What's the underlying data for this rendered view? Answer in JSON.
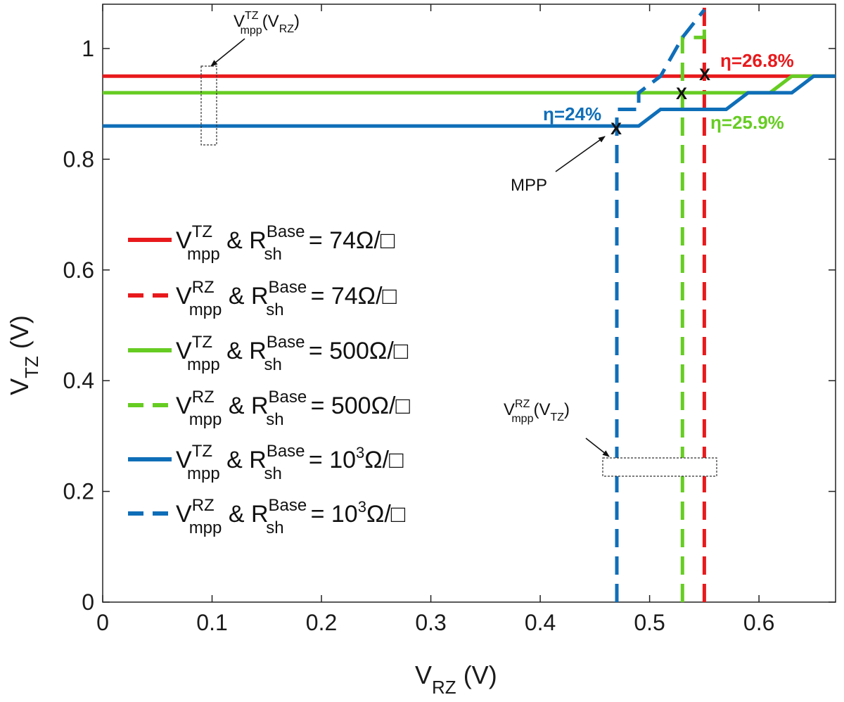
{
  "chart_data": {
    "type": "line",
    "title": "",
    "xlabel": {
      "main": "V",
      "sub": "RZ",
      "unit": " (V)"
    },
    "ylabel": {
      "main": "V",
      "sub": "TZ",
      "unit": " (V)"
    },
    "xlim": [
      0,
      0.67
    ],
    "ylim": [
      0,
      1.08
    ],
    "grid": false,
    "xticks": [
      0,
      0.1,
      0.2,
      0.3,
      0.4,
      0.5,
      0.6
    ],
    "xtick_labels": [
      "0",
      "0.1",
      "0.2",
      "0.3",
      "0.4",
      "0.5",
      "0.6"
    ],
    "yticks": [
      0,
      0.2,
      0.4,
      0.6,
      0.8,
      1
    ],
    "ytick_labels": [
      "0",
      "0.2",
      "0.4",
      "0.6",
      "0.8",
      "1"
    ],
    "legend_position": "center-left",
    "series": [
      {
        "id": "red-solid",
        "color": "#e8191c",
        "dashed": false,
        "label": {
          "a": "V",
          "asup": "TZ",
          "asub": "mpp",
          "b": " & R",
          "bsup": "Base",
          "bsub": "sh",
          "c": "=  74Ω/□"
        },
        "x": [
          0,
          0.63,
          0.67
        ],
        "y": [
          0.95,
          0.95,
          0.95
        ]
      },
      {
        "id": "red-dashed",
        "color": "#e8191c",
        "dashed": true,
        "label": {
          "a": "V",
          "asup": "RZ",
          "asub": "mpp",
          "b": " & R",
          "bsup": "Base",
          "bsub": "sh",
          "c": "=  74Ω/□"
        },
        "x": [
          0.55,
          0.55
        ],
        "y": [
          0,
          1.08
        ]
      },
      {
        "id": "green-solid",
        "color": "#66cc22",
        "dashed": false,
        "label": {
          "a": "V",
          "asup": "TZ",
          "asub": "mpp",
          "b": " & R",
          "bsup": "Base",
          "bsub": "sh",
          "c": "=  500Ω/□"
        },
        "x": [
          0,
          0.61,
          0.63,
          0.67
        ],
        "y": [
          0.92,
          0.92,
          0.95,
          0.95
        ]
      },
      {
        "id": "green-dashed",
        "color": "#66cc22",
        "dashed": true,
        "label": {
          "a": "V",
          "asup": "RZ",
          "asub": "mpp",
          "b": " & R",
          "bsup": "Base",
          "bsub": "sh",
          "c": "=  500Ω/□"
        },
        "x": [
          0.53,
          0.53,
          0.55,
          0.55
        ],
        "y": [
          0,
          1.02,
          1.02,
          1.05
        ]
      },
      {
        "id": "blue-solid",
        "color": "#0f6eb8",
        "dashed": false,
        "label": {
          "a": "V",
          "asup": "TZ",
          "asub": "mpp",
          "b": " & R",
          "bsup": "Base",
          "bsub": "sh",
          "c": "=  10",
          "csup": "3",
          "cafter": "Ω/□"
        },
        "x": [
          0,
          0.49,
          0.51,
          0.57,
          0.59,
          0.63,
          0.65,
          0.67
        ],
        "y": [
          0.86,
          0.86,
          0.89,
          0.89,
          0.92,
          0.92,
          0.95,
          0.95
        ]
      },
      {
        "id": "blue-dashed",
        "color": "#0f6eb8",
        "dashed": true,
        "label": {
          "a": "V",
          "asup": "RZ",
          "asub": "mpp",
          "b": " & R",
          "bsup": "Base",
          "bsub": "sh",
          "c": "=  10",
          "csup": "3",
          "cafter": "Ω/□"
        },
        "x": [
          0.47,
          0.47,
          0.47,
          0.49,
          0.49,
          0.51,
          0.53,
          0.55
        ],
        "y": [
          0,
          0.86,
          0.89,
          0.89,
          0.92,
          0.95,
          1.02,
          1.07
        ]
      }
    ],
    "mpp_points": [
      {
        "x": 0.47,
        "y": 0.86,
        "mark": "X"
      },
      {
        "x": 0.53,
        "y": 0.92,
        "mark": "X"
      },
      {
        "x": 0.55,
        "y": 0.953,
        "mark": "X"
      }
    ],
    "annotations": {
      "eta_blue": {
        "text": "η=24%",
        "color": "#0f6eb8"
      },
      "eta_red": {
        "text": "η=26.8%",
        "color": "#e8191c"
      },
      "eta_green": {
        "text": "η=25.9%",
        "color": "#66cc22"
      },
      "mpp_label": {
        "text": "MPP"
      },
      "box_top": {
        "a": "V",
        "sup": "TZ",
        "sub": "mpp",
        "b": "(V",
        "bsub": "RZ",
        "c": ")"
      },
      "box_bottom": {
        "a": "V",
        "sup": "RZ",
        "sub": "mpp",
        "b": "(V",
        "bsub": "TZ",
        "c": ")"
      }
    }
  }
}
